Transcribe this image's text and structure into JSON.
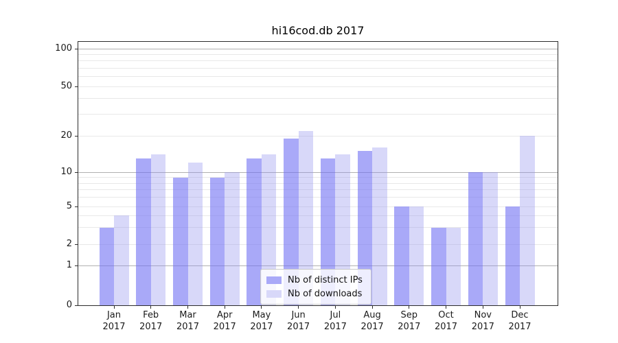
{
  "chart_data": {
    "type": "bar",
    "title": "hi16cod.db 2017",
    "year_label": "2017",
    "categories": [
      "Jan",
      "Feb",
      "Mar",
      "Apr",
      "May",
      "Jun",
      "Jul",
      "Aug",
      "Sep",
      "Oct",
      "Nov",
      "Dec"
    ],
    "series": [
      {
        "name": "Nb of distinct IPs",
        "values": [
          3,
          13,
          9,
          9,
          13,
          19,
          13,
          15,
          5,
          3,
          10,
          5
        ],
        "color": "#a9a9f8",
        "fill": "rgba(112,112,243,0.60)"
      },
      {
        "name": "Nb of downloads",
        "values": [
          4,
          14,
          12,
          10,
          14,
          22,
          14,
          16,
          5,
          3,
          10,
          20
        ],
        "color": "#d8d8f9",
        "fill": "rgba(144,144,238,0.35)"
      }
    ],
    "y_axis": {
      "scale": "symlog",
      "ticks": [
        0,
        1,
        2,
        5,
        10,
        20,
        50,
        100
      ],
      "minor_gridlines": [
        3,
        4,
        6,
        7,
        8,
        9,
        30,
        40,
        60,
        70,
        80,
        90
      ],
      "decade_gridlines": [
        1,
        10,
        100
      ],
      "range": [
        0,
        110
      ]
    },
    "x_axis": {
      "tick_label_lines": 2
    },
    "legend": {
      "position": "lower-center",
      "entries": [
        "Nb of distinct IPs",
        "Nb of downloads"
      ]
    },
    "grid": true,
    "colors": {
      "grid_minor": "#e8e8e8",
      "grid_major": "#b0b0b0",
      "spine": "#2b2b2b",
      "text": "#1a1a1a",
      "legend_border": "#c9c9c9",
      "background": "#ffffff"
    }
  }
}
